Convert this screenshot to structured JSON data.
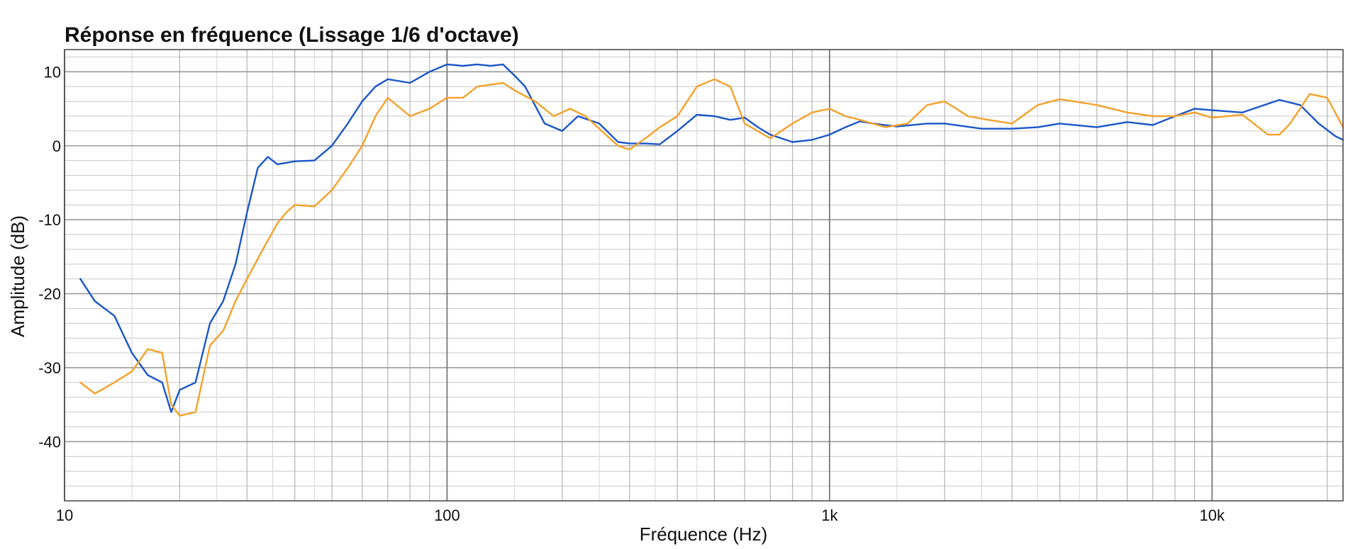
{
  "chart_data": {
    "type": "line",
    "title": "Réponse en fréquence (Lissage 1/6 d'octave)",
    "xlabel": "Fréquence (Hz)",
    "ylabel": "Amplitude (dB)",
    "xscale": "log",
    "xlim": [
      10,
      22000
    ],
    "ylim": [
      -48,
      13
    ],
    "grid": true,
    "legend": "none",
    "x_ticks": [
      {
        "value": 10,
        "label": "10"
      },
      {
        "value": 100,
        "label": "100"
      },
      {
        "value": 1000,
        "label": "1k"
      },
      {
        "value": 10000,
        "label": "10k"
      }
    ],
    "y_ticks": [
      {
        "value": 10,
        "label": "10"
      },
      {
        "value": 0,
        "label": "0"
      },
      {
        "value": -10,
        "label": "-10"
      },
      {
        "value": -20,
        "label": "-20"
      },
      {
        "value": -30,
        "label": "-30"
      },
      {
        "value": -40,
        "label": "-40"
      }
    ],
    "series": [
      {
        "color": "#1a56c9",
        "x": [
          11,
          12,
          13.5,
          15,
          16.5,
          18,
          19,
          20,
          22,
          24,
          26,
          28,
          30,
          32,
          34,
          36,
          38,
          40,
          45,
          50,
          55,
          60,
          65,
          70,
          80,
          90,
          100,
          110,
          120,
          130,
          140,
          150,
          160,
          180,
          200,
          220,
          250,
          280,
          300,
          330,
          360,
          400,
          450,
          500,
          550,
          600,
          650,
          700,
          800,
          900,
          1000,
          1100,
          1200,
          1300,
          1500,
          1800,
          2000,
          2500,
          3000,
          3500,
          4000,
          5000,
          6000,
          7000,
          8000,
          9000,
          10000,
          12000,
          15000,
          17000,
          19000,
          21000,
          22000
        ],
        "y": [
          -18,
          -21,
          -23,
          -28,
          -31,
          -32,
          -36,
          -33,
          -32,
          -24,
          -21,
          -16,
          -9,
          -3,
          -1.5,
          -2.5,
          -2.3,
          -2.1,
          -2,
          0,
          3,
          6,
          8,
          9,
          8.5,
          10,
          11,
          10.8,
          11,
          10.8,
          11,
          9.5,
          8,
          3,
          2,
          4,
          3,
          0.5,
          0.3,
          0.3,
          0.2,
          2,
          4.2,
          4,
          3.5,
          3.8,
          2.5,
          1.5,
          0.5,
          0.8,
          1.5,
          2.5,
          3.3,
          3,
          2.6,
          3,
          3,
          2.3,
          2.3,
          2.5,
          3,
          2.5,
          3.2,
          2.8,
          4,
          5,
          4.8,
          4.5,
          6.2,
          5.5,
          3,
          1.3,
          0.8
        ]
      },
      {
        "color": "#f4a12a",
        "x": [
          11,
          12,
          13.5,
          15,
          16.5,
          18,
          19,
          20,
          22,
          24,
          26,
          28,
          30,
          33,
          36,
          38,
          40,
          45,
          50,
          55,
          60,
          65,
          70,
          80,
          90,
          100,
          110,
          120,
          140,
          150,
          170,
          190,
          210,
          230,
          260,
          280,
          300,
          330,
          360,
          400,
          450,
          500,
          550,
          600,
          700,
          800,
          900,
          1000,
          1100,
          1200,
          1400,
          1600,
          1800,
          2000,
          2300,
          2600,
          3000,
          3500,
          4000,
          5000,
          6000,
          7000,
          8000,
          9000,
          10000,
          12000,
          14000,
          15000,
          16000,
          18000,
          20000,
          22000
        ],
        "y": [
          -32,
          -33.5,
          -32,
          -30.5,
          -27.5,
          -28,
          -35,
          -36.5,
          -36,
          -27,
          -25,
          -21,
          -18,
          -14,
          -10.5,
          -9,
          -8,
          -8.2,
          -6,
          -3,
          0,
          4,
          6.5,
          4,
          5,
          6.5,
          6.5,
          8,
          8.5,
          7.5,
          6,
          4,
          5,
          4,
          1.5,
          0,
          -0.5,
          1,
          2.5,
          4,
          8,
          9,
          8,
          3,
          1,
          3,
          4.5,
          5,
          4,
          3.5,
          2.5,
          3,
          5.5,
          6,
          4,
          3.5,
          3,
          5.5,
          6.3,
          5.5,
          4.5,
          4,
          4,
          4.5,
          3.8,
          4.2,
          1.5,
          1.5,
          3,
          7,
          6.5,
          2.5
        ]
      }
    ]
  }
}
